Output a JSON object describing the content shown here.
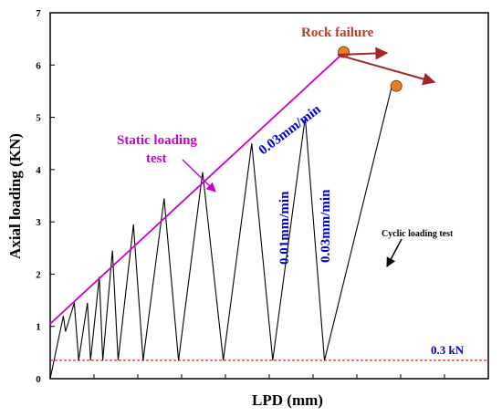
{
  "chart_data": {
    "type": "line",
    "title": "",
    "xlabel": "LPD (mm)",
    "ylabel": "Axial loading (KN)",
    "ylim": [
      0,
      7
    ],
    "yticks": [
      "0",
      "1",
      "2",
      "3",
      "4",
      "5",
      "6",
      "7"
    ],
    "xlim": [
      0,
      10
    ],
    "xticks_labeled": false,
    "x_minor_ticks": [
      1,
      2,
      3,
      4,
      5,
      6,
      7,
      8,
      9,
      10
    ],
    "series": [
      {
        "label": "Cyclic loading test",
        "color": "#000000",
        "points": [
          [
            0.0,
            0.0
          ],
          [
            0.3,
            1.2
          ],
          [
            0.35,
            0.9
          ],
          [
            0.55,
            1.45
          ],
          [
            0.65,
            0.35
          ],
          [
            0.85,
            1.45
          ],
          [
            0.92,
            0.35
          ],
          [
            1.12,
            1.95
          ],
          [
            1.2,
            0.35
          ],
          [
            1.42,
            2.45
          ],
          [
            1.55,
            0.35
          ],
          [
            1.9,
            2.95
          ],
          [
            2.12,
            0.35
          ],
          [
            2.6,
            3.45
          ],
          [
            2.93,
            0.35
          ],
          [
            3.48,
            3.95
          ],
          [
            3.95,
            0.35
          ],
          [
            4.6,
            4.5
          ],
          [
            5.08,
            0.35
          ],
          [
            5.82,
            5.0
          ],
          [
            6.26,
            0.35
          ],
          [
            7.8,
            5.6
          ]
        ]
      },
      {
        "label": "Static loading test",
        "color": "#cc00cc",
        "points": [
          [
            0.0,
            1.05
          ],
          [
            6.65,
            6.2
          ]
        ]
      },
      {
        "label": "0.3 kN",
        "color": "#cc0000",
        "dashed": true,
        "points": [
          [
            0.0,
            0.35
          ],
          [
            10.0,
            0.35
          ]
        ]
      }
    ],
    "failure_points": [
      [
        6.7,
        6.25
      ],
      [
        7.9,
        5.6
      ]
    ],
    "annotations": {
      "rock_failure": "Rock failure",
      "static_loading_line1": "Static loading",
      "static_loading_line2": "test",
      "rate_static": "0.03mm/min",
      "rate_cyclic_a": "0.01mm/min",
      "rate_cyclic_b": "0.03mm/min",
      "cyclic_loading": "Cyclic loading test",
      "threshold": "0.3 kN"
    },
    "colors": {
      "annotation_blue": "#0000cc",
      "rock_failure_red": "#c0392b",
      "marker_fill": "#e67e22",
      "arrow_brown": "#a0282a"
    }
  }
}
